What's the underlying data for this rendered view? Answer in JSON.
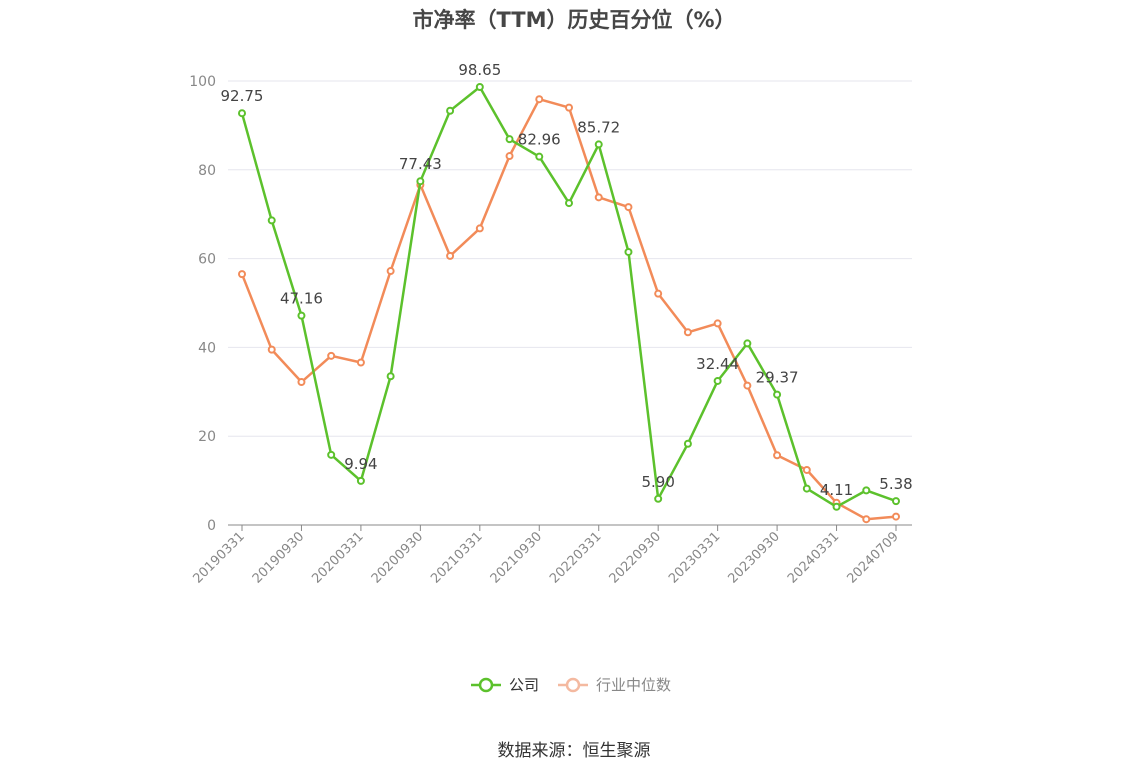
{
  "title": "市净率（TTM）历史百分位（%）",
  "source": "数据来源：恒生聚源",
  "colors": {
    "company": "#5cc12c",
    "industry": "#f28b59",
    "industry_legend": "#f4b9a0",
    "grid": "#e6e6ee",
    "axis": "#888888"
  },
  "chart_data": {
    "type": "line",
    "title": "市净率（TTM）历史百分位（%）",
    "ylim": [
      0,
      100
    ],
    "yticks": [
      0,
      20,
      40,
      60,
      80,
      100
    ],
    "grid": true,
    "legend_position": "bottom-center",
    "xtick_labels": [
      "20190331",
      "20190930",
      "20200331",
      "20200930",
      "20210331",
      "20210930",
      "20220331",
      "20220930",
      "20230331",
      "20230930",
      "20240331",
      "20240709"
    ],
    "x": [
      "2019-03-31",
      "2019-06-30",
      "2019-09-30",
      "2019-12-31",
      "2020-03-31",
      "2020-06-30",
      "2020-09-30",
      "2020-12-31",
      "2021-03-31",
      "2021-06-30",
      "2021-09-30",
      "2021-12-31",
      "2022-03-31",
      "2022-06-30",
      "2022-09-30",
      "2022-12-31",
      "2023-03-31",
      "2023-06-30",
      "2023-09-30",
      "2023-12-31",
      "2024-03-31",
      "2024-06-30",
      "2024-07-09"
    ],
    "series": [
      {
        "name": "公司",
        "values": [
          92.75,
          68.6,
          47.16,
          15.8,
          9.94,
          33.5,
          77.43,
          93.3,
          98.65,
          86.9,
          82.96,
          72.5,
          85.72,
          61.5,
          5.9,
          18.3,
          32.44,
          40.9,
          29.37,
          8.2,
          4.11,
          7.8,
          5.38
        ],
        "labels": [
          "92.75",
          "",
          "47.16",
          "",
          "9.94",
          "",
          "77.43",
          "",
          "98.65",
          "",
          "82.96",
          "",
          "85.72",
          "",
          "5.90",
          "",
          "32.44",
          "",
          "29.37",
          "",
          "4.11",
          "",
          "5.38"
        ]
      },
      {
        "name": "行业中位数",
        "values": [
          56.5,
          39.5,
          32.2,
          38.1,
          36.6,
          57.2,
          76.6,
          60.6,
          66.8,
          83.1,
          95.9,
          94.0,
          73.8,
          71.6,
          52.1,
          43.4,
          45.4,
          31.4,
          15.7,
          12.4,
          5.0,
          1.3,
          1.9
        ]
      }
    ]
  }
}
